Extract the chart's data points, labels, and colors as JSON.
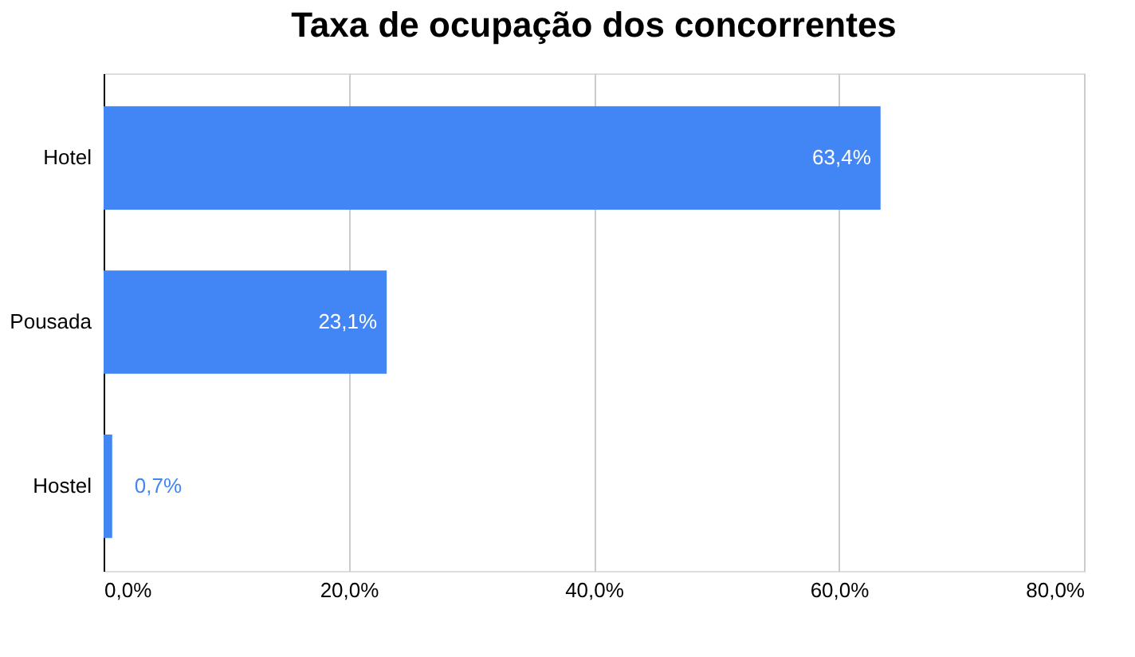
{
  "chart_data": {
    "type": "bar",
    "orientation": "horizontal",
    "title": "Taxa de ocupação dos concorrentes",
    "categories": [
      "Hotel",
      "Pousada",
      "Hostel"
    ],
    "values": [
      63.4,
      23.1,
      0.7
    ],
    "value_labels": [
      "63,4%",
      "23,1%",
      "0,7%"
    ],
    "color": "#4285f4",
    "xlim": [
      0,
      80
    ],
    "xticks": [
      {
        "value": 0,
        "label": "0,0%"
      },
      {
        "value": 20,
        "label": "20,0%"
      },
      {
        "value": 40,
        "label": "40,0%"
      },
      {
        "value": 60,
        "label": "60,0%"
      },
      {
        "value": 80,
        "label": "80,0%"
      }
    ],
    "grid": "x"
  }
}
